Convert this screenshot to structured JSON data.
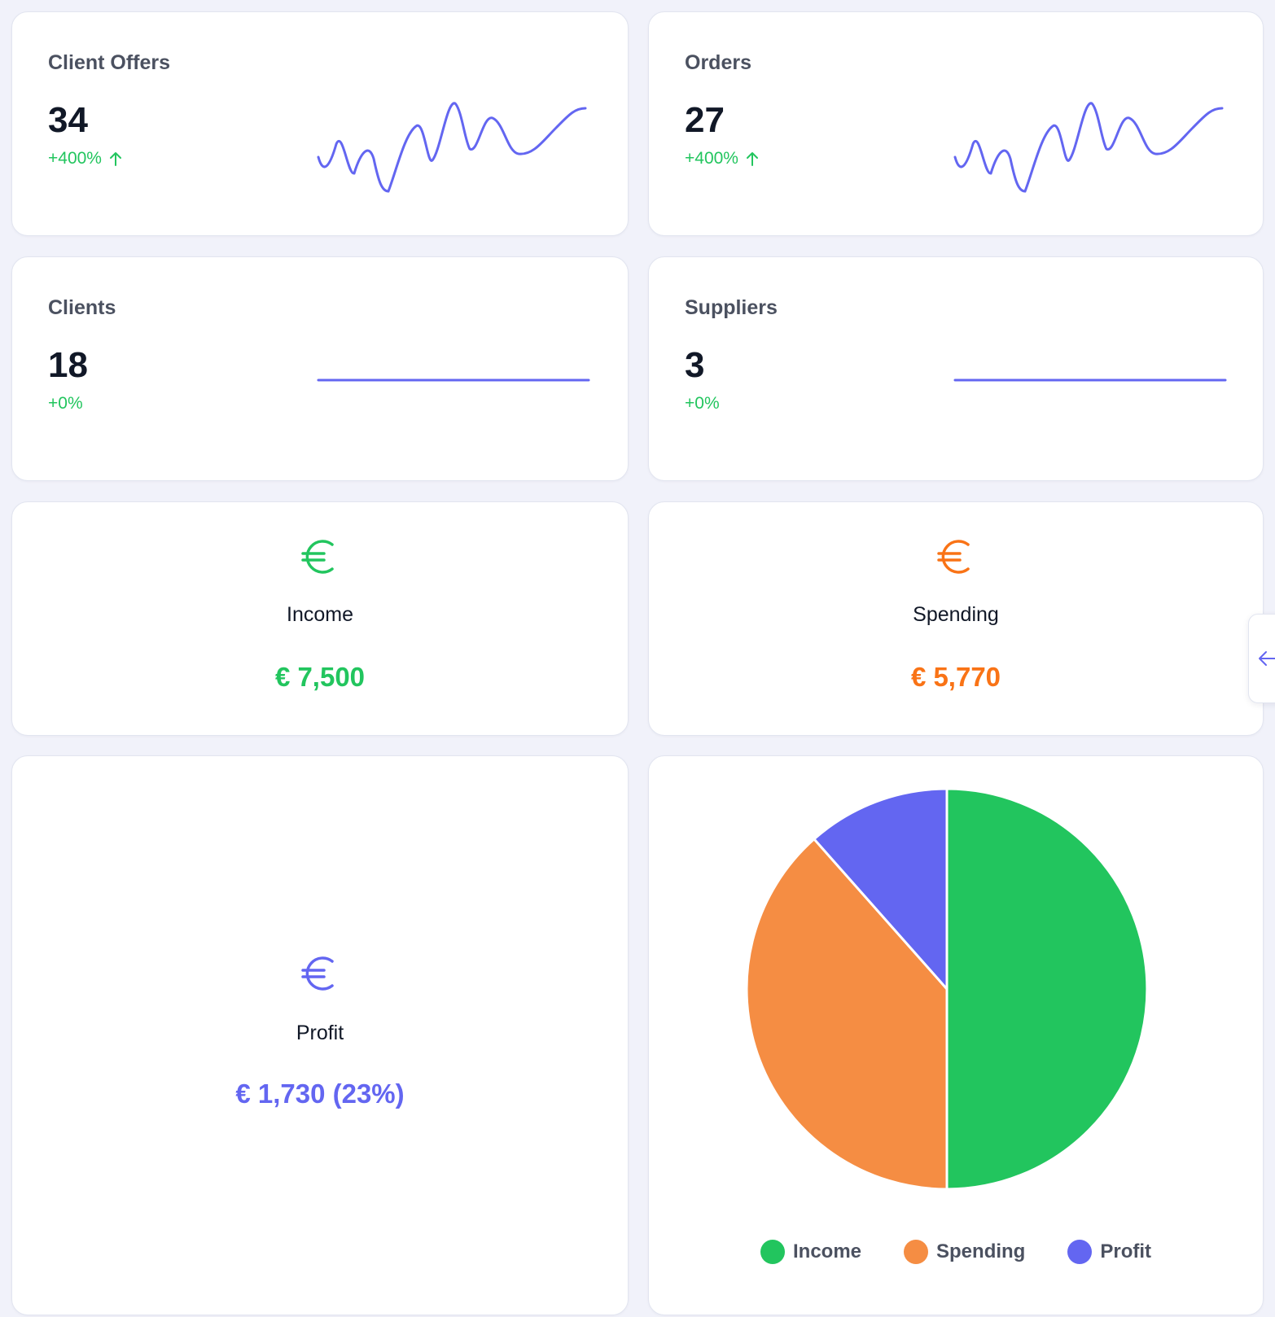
{
  "colors": {
    "positive": "#22c55e",
    "income": "#22c55e",
    "spending": "#f58d43",
    "spending_text": "#f97316",
    "profit": "#6366f1",
    "sparkline": "#6366f1"
  },
  "stats": [
    {
      "title": "Client Offers",
      "value": "34",
      "change": "+400%",
      "trend_icon": "arrow-up-icon"
    },
    {
      "title": "Orders",
      "value": "27",
      "change": "+400%",
      "trend_icon": "arrow-up-icon"
    },
    {
      "title": "Clients",
      "value": "18",
      "change": "+0%"
    },
    {
      "title": "Suppliers",
      "value": "3",
      "change": "+0%"
    }
  ],
  "money": {
    "income": {
      "label": "Income",
      "value": "€ 7,500",
      "icon": "euro-icon"
    },
    "spending": {
      "label": "Spending",
      "value": "€ 5,770",
      "icon": "euro-icon"
    },
    "profit": {
      "label": "Profit",
      "value": "€ 1,730 (23%)",
      "icon": "euro-icon"
    }
  },
  "side_tab": {
    "icon": "arrow-left-icon"
  },
  "chart_data": {
    "type": "pie",
    "labels": [
      "Income",
      "Spending",
      "Profit"
    ],
    "values": [
      7500,
      5770,
      1730
    ],
    "colors": [
      "#22c55e",
      "#f58d43",
      "#6366f1"
    ],
    "legend_position": "bottom"
  }
}
